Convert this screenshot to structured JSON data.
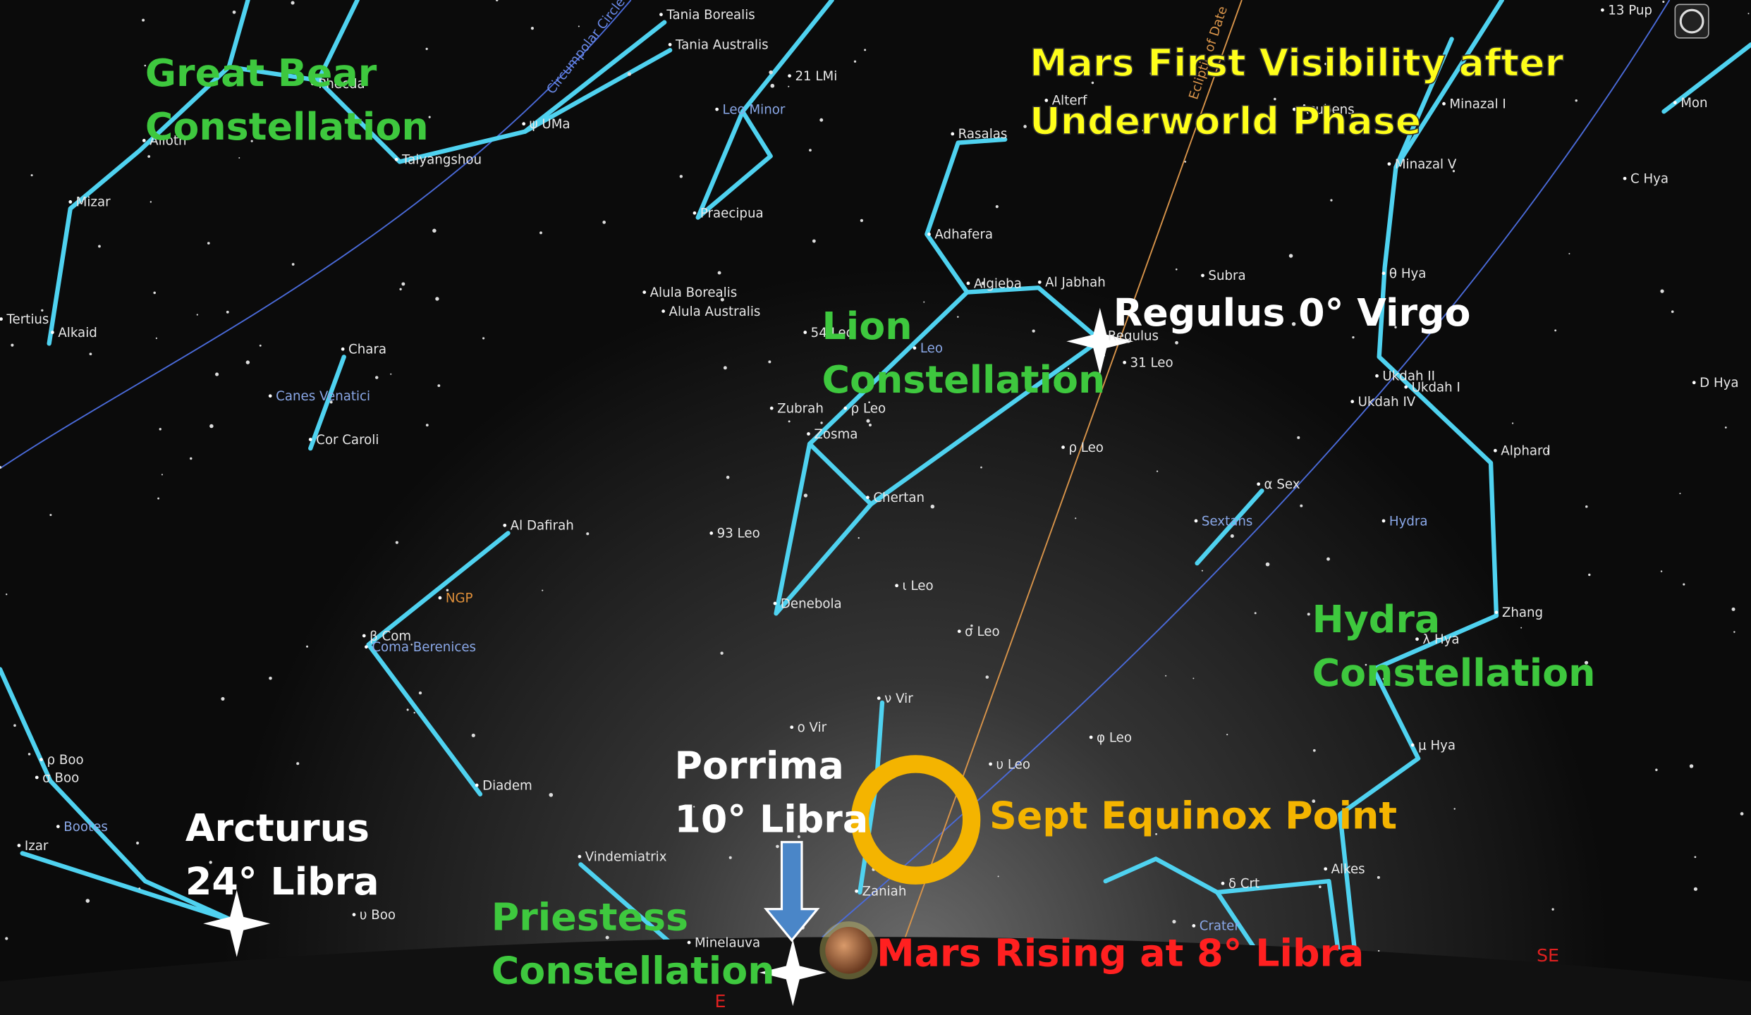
{
  "title_lines": [
    "Mars First Visibility after",
    "Underworld Phase"
  ],
  "annotations": [
    {
      "lines": [
        "Great Bear",
        "Constellation"
      ]
    },
    {
      "lines": [
        "Lion",
        "Constellation"
      ]
    },
    {
      "lines": [
        "Hydra",
        "Constellation"
      ]
    },
    {
      "lines": [
        "Priestess",
        "Constellation"
      ]
    },
    {
      "lines": [
        "Regulus 0° Virgo"
      ]
    },
    {
      "lines": [
        "Porrima",
        "10° Libra"
      ]
    },
    {
      "lines": [
        "Arcturus",
        "24° Libra"
      ]
    },
    {
      "lines": [
        "Sept Equinox Point"
      ]
    },
    {
      "lines": [
        "Mars Rising at 8° Libra"
      ]
    }
  ],
  "star_labels": [
    "Tania Borealis",
    "Tania Australis",
    "21 LMi",
    "Leo Minor",
    "Praecipua",
    "Alula Borealis",
    "Alula Australis",
    "Chara",
    "Canes Venatici",
    "Cor Caroli",
    "Alkaid",
    "Tertius",
    "Mizar",
    "Taiyangshou",
    "ψ UMa",
    "Alioth",
    "Phecda",
    "Al Dafirah",
    "NGP",
    "β Com",
    "Coma Berenices",
    "Diadem",
    "ρ Boo",
    "σ Boo",
    "Bootes",
    "Izar",
    "υ Boo",
    "Vindemiatrix",
    "Minelauva",
    "Zaniah",
    "ν Vir",
    "ο Vir",
    "Denebola",
    "93 Leo",
    "Chertan",
    "Zosma",
    "Zubrah",
    "ρ Leo",
    "ι Leo",
    "σ Leo",
    "Leo",
    "54 Leo",
    "Algieba",
    "Al Jabhah",
    "Adhafera",
    "Rasalas",
    "Alterf",
    "Regulus",
    "31 Leo",
    "ρ Leo",
    "Subra",
    "α Sex",
    "Sextans",
    "Hydra",
    "θ Hya",
    "Ukdah II",
    "Ukdah I",
    "Ukdah IV",
    "Alphard",
    "Zhang",
    "λ Hya",
    "μ Hya",
    "φ Leo",
    "υ Leo",
    "Alkes",
    "δ Crt",
    "Crater",
    "Acubens",
    "Minazal I",
    "Minazal V",
    "C Hya",
    "D Hya",
    "Mon",
    "13 Pup",
    "Circumpolar Circle",
    "Ecliptic of Date"
  ],
  "compass": [
    "E",
    "SE"
  ]
}
